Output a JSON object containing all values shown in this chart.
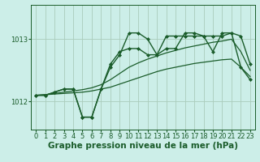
{
  "background_color": "#cceee8",
  "plot_bg_color": "#cceee8",
  "grid_color": "#aaccbb",
  "line_color": "#1a5c2a",
  "xlabel": "Graphe pression niveau de la mer (hPa)",
  "xlabel_fontsize": 7.5,
  "tick_fontsize": 6,
  "yticks": [
    1012,
    1013
  ],
  "ylim": [
    1011.55,
    1013.55
  ],
  "xlim": [
    -0.5,
    23.5
  ],
  "xticks": [
    0,
    1,
    2,
    3,
    4,
    5,
    6,
    7,
    8,
    9,
    10,
    11,
    12,
    13,
    14,
    15,
    16,
    17,
    18,
    19,
    20,
    21,
    22,
    23
  ],
  "series": [
    {
      "x": [
        0,
        1,
        2,
        3,
        4,
        5,
        6,
        7,
        8,
        9,
        10,
        11,
        12,
        13,
        14,
        15,
        16,
        17,
        18,
        19,
        20,
        21,
        22,
        23
      ],
      "y": [
        1012.1,
        1012.1,
        1012.15,
        1012.2,
        1012.2,
        1011.75,
        1011.75,
        1012.2,
        1012.55,
        1012.75,
        1013.1,
        1013.1,
        1013.0,
        1012.75,
        1013.05,
        1013.05,
        1013.05,
        1013.05,
        1013.05,
        1013.05,
        1013.05,
        1013.1,
        1013.05,
        1012.6
      ],
      "marker": "D",
      "markersize": 2.0,
      "linewidth": 1.0,
      "with_markers": true
    },
    {
      "x": [
        0,
        1,
        2,
        3,
        4,
        5,
        6,
        7,
        8,
        9,
        10,
        11,
        12,
        13,
        14,
        15,
        16,
        17,
        18,
        19,
        20,
        21,
        22,
        23
      ],
      "y": [
        1012.1,
        1012.1,
        1012.15,
        1012.2,
        1012.2,
        1011.75,
        1011.75,
        1012.2,
        1012.6,
        1012.8,
        1012.85,
        1012.85,
        1012.75,
        1012.75,
        1012.85,
        1012.85,
        1013.1,
        1013.1,
        1013.05,
        1012.8,
        1013.1,
        1013.1,
        1012.55,
        1012.35
      ],
      "marker": "D",
      "markersize": 2.0,
      "linewidth": 1.0,
      "with_markers": true
    },
    {
      "x": [
        0,
        1,
        2,
        3,
        4,
        5,
        6,
        7,
        8,
        9,
        10,
        11,
        12,
        13,
        14,
        15,
        16,
        17,
        18,
        19,
        20,
        21,
        22,
        23
      ],
      "y": [
        1012.1,
        1012.11,
        1012.13,
        1012.15,
        1012.17,
        1012.19,
        1012.22,
        1012.27,
        1012.35,
        1012.45,
        1012.55,
        1012.62,
        1012.68,
        1012.73,
        1012.78,
        1012.82,
        1012.86,
        1012.89,
        1012.92,
        1012.95,
        1012.97,
        1013.0,
        1012.8,
        1012.5
      ],
      "marker": null,
      "linewidth": 0.9,
      "with_markers": false
    },
    {
      "x": [
        0,
        1,
        2,
        3,
        4,
        5,
        6,
        7,
        8,
        9,
        10,
        11,
        12,
        13,
        14,
        15,
        16,
        17,
        18,
        19,
        20,
        21,
        22,
        23
      ],
      "y": [
        1012.1,
        1012.11,
        1012.12,
        1012.13,
        1012.14,
        1012.15,
        1012.17,
        1012.2,
        1012.23,
        1012.28,
        1012.33,
        1012.38,
        1012.43,
        1012.48,
        1012.52,
        1012.55,
        1012.58,
        1012.61,
        1012.63,
        1012.65,
        1012.67,
        1012.68,
        1012.55,
        1012.4
      ],
      "marker": null,
      "linewidth": 0.9,
      "with_markers": false
    }
  ]
}
